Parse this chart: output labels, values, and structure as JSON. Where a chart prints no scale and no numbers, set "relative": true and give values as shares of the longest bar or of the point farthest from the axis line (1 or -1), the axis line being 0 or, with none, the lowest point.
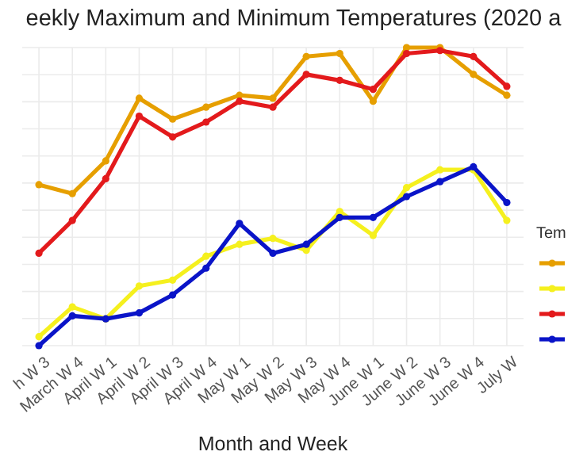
{
  "chart_data": {
    "type": "line",
    "title": "eekly Maximum and Minimum Temperatures (2020 a",
    "xlabel": "Month and Week",
    "legend_title": "Tem",
    "categories": [
      "h W 3",
      "March W 4",
      "April W 1",
      "April W 2",
      "April W 3",
      "April W 4",
      "May W 1",
      "May W 2",
      "May W 3",
      "May W 4",
      "June W 1",
      "June W 2",
      "June W 3",
      "June W 4",
      "July W"
    ],
    "relative": true,
    "grid": true,
    "marker": "circle",
    "line_style": "solid",
    "series": [
      {
        "color": "#e69f00",
        "values": [
          0.54,
          0.51,
          0.62,
          0.83,
          0.76,
          0.8,
          0.84,
          0.83,
          0.97,
          0.98,
          0.82,
          1,
          1,
          0.91,
          0.84
        ]
      },
      {
        "color": "#f5f01e",
        "values": [
          0.03,
          0.13,
          0.09,
          0.2,
          0.22,
          0.3,
          0.34,
          0.36,
          0.32,
          0.45,
          0.37,
          0.53,
          0.59,
          0.59,
          0.42
        ]
      },
      {
        "color": "#e31a1c",
        "values": [
          0.31,
          0.42,
          0.56,
          0.77,
          0.7,
          0.75,
          0.82,
          0.8,
          0.91,
          0.89,
          0.86,
          0.98,
          0.99,
          0.97,
          0.87
        ]
      },
      {
        "color": "#0a14c8",
        "values": [
          0,
          0.1,
          0.09,
          0.11,
          0.17,
          0.26,
          0.41,
          0.31,
          0.34,
          0.43,
          0.43,
          0.5,
          0.55,
          0.6,
          0.48
        ]
      }
    ]
  }
}
